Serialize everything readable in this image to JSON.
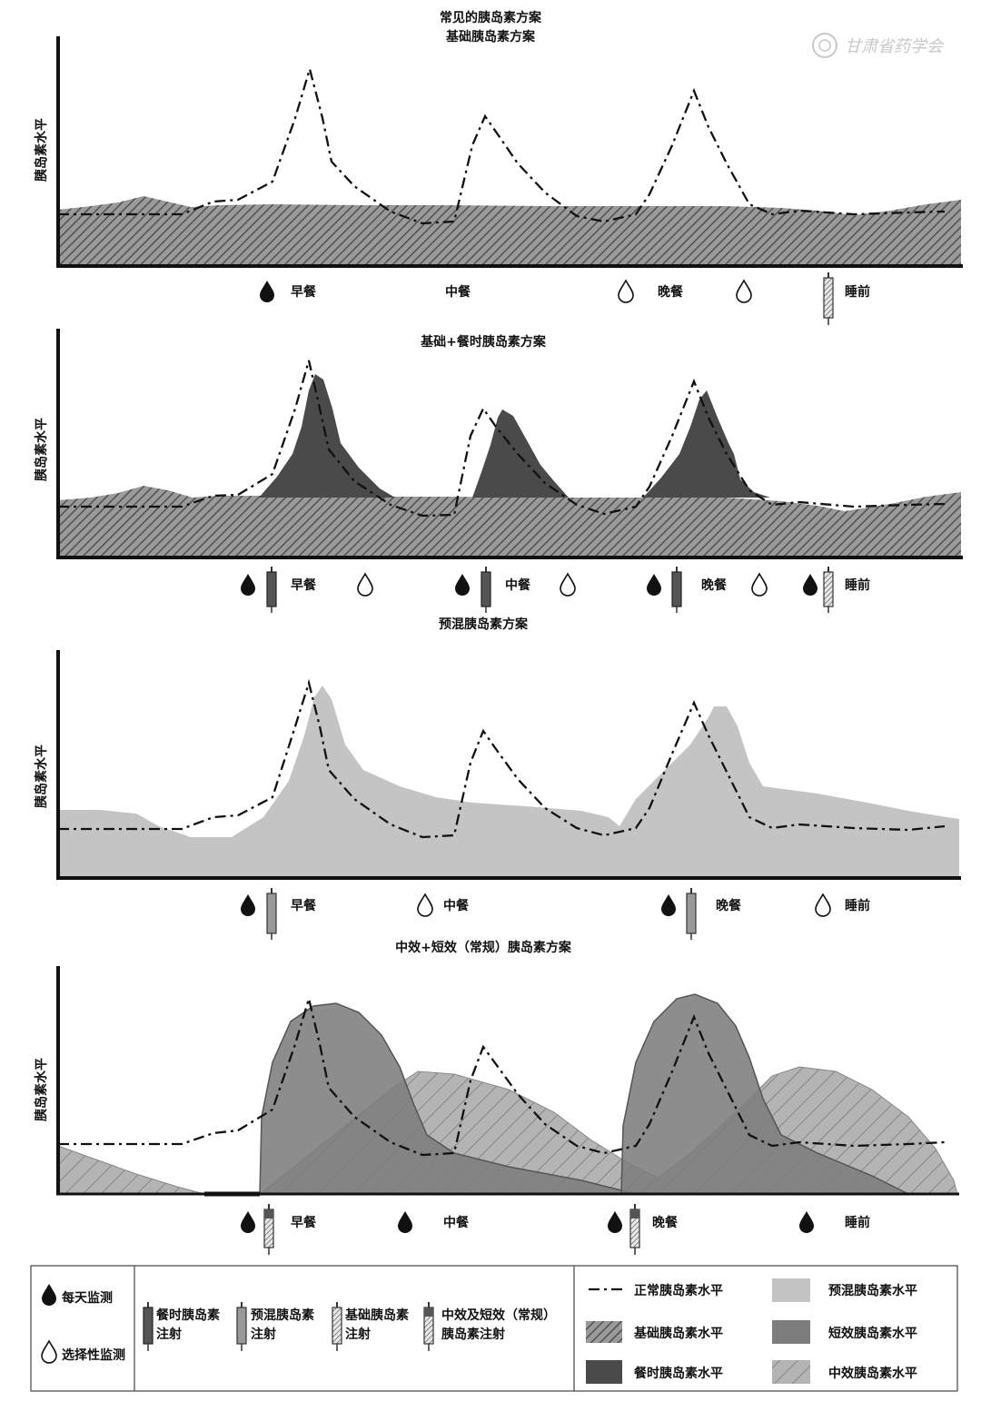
{
  "title": "常见的胰岛素方案",
  "watermark": "甘肃省药学会",
  "y_axis_label": "胰岛素水平",
  "panels": [
    {
      "subtitle": "基础胰岛素方案",
      "meals": [
        "早餐",
        "中餐",
        "晚餐",
        "睡前"
      ]
    },
    {
      "subtitle": "基础+餐时胰岛素方案",
      "meals": [
        "早餐",
        "中餐",
        "晚餐",
        "睡前"
      ]
    },
    {
      "subtitle": "预混胰岛素方案",
      "meals": [
        "早餐",
        "中餐",
        "晚餐",
        "睡前"
      ]
    },
    {
      "subtitle": "中效+短效（常规）胰岛素方案",
      "meals": [
        "早餐",
        "中餐",
        "晚餐",
        "睡前"
      ]
    }
  ],
  "legend": {
    "monitor_daily": "每天监测",
    "monitor_optional": "选择性监测",
    "inj_mealtime": [
      "餐时胰岛素",
      "注射"
    ],
    "inj_premix": [
      "预混胰岛素",
      "注射"
    ],
    "inj_basal": [
      "基础胰岛素",
      "注射"
    ],
    "inj_nph_short": [
      "中效及短效（常规）",
      "胰岛素注射"
    ],
    "normal_level": "正常胰岛素水平",
    "basal_level": "基础胰岛素水平",
    "mealtime_level": "餐时胰岛素水平",
    "premix_level": "预混胰岛素水平",
    "short_level": "短效胰岛素水平",
    "nph_level": "中效胰岛素水平"
  },
  "colors": {
    "basal_hatch": "#6f6f6f",
    "mealtime": "#4a4a4a",
    "premix": "#c4c4c4",
    "short": "#7d7d7d",
    "nph": "#b4b4b4",
    "normal_line": "#111111"
  }
}
